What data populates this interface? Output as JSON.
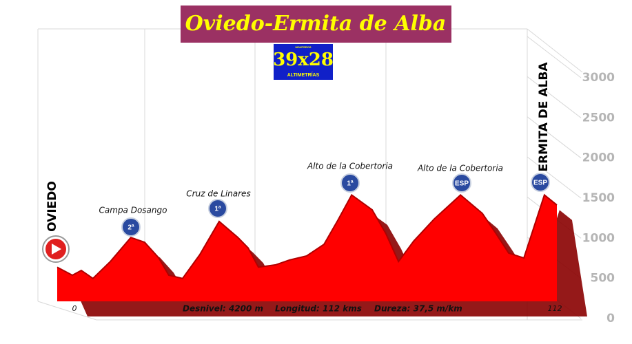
{
  "chart_data": {
    "type": "area",
    "title": "Oviedo-Ermita de Alba",
    "logo": {
      "top": "MONTEROS",
      "main": "39x28",
      "bottom": "ALTIMETRÍAS"
    },
    "x": [
      0,
      3.4,
      5.4,
      8.0,
      11.9,
      16.5,
      19.6,
      22.7,
      25.0,
      28.1,
      32.0,
      36.3,
      40.5,
      42.8,
      45.1,
      49.0,
      52.1,
      55.9,
      59.8,
      62.9,
      66.0,
      70.6,
      73.7,
      76.5,
      79.9,
      84.5,
      90.4,
      95.3,
      98.4,
      101.2,
      104.6,
      109.2,
      112
    ],
    "values": [
      640,
      540,
      600,
      500,
      710,
      1010,
      950,
      760,
      540,
      500,
      800,
      1210,
      1010,
      880,
      640,
      670,
      730,
      780,
      925,
      1225,
      1540,
      1355,
      1055,
      710,
      965,
      1240,
      1540,
      1310,
      1055,
      815,
      755,
      1540,
      1415
    ],
    "color": "#ff0000",
    "xlim": [
      0,
      112
    ],
    "xticks": [
      0,
      112
    ],
    "ylim": [
      0,
      3000
    ],
    "yticks": [
      0,
      500,
      1000,
      1500,
      2000,
      2500,
      3000
    ],
    "start": "OVIEDO",
    "finish": "ERMITA DE ALBA",
    "summits": [
      {
        "name": "Campa Dosango",
        "category": "2ª"
      },
      {
        "name": "Cruz de Linares",
        "category": "1ª"
      },
      {
        "name": "Alto de la Cobertoria",
        "category": "1ª"
      },
      {
        "name": "Alto de la Cobertoria",
        "category": "ESP"
      }
    ],
    "finish_category": "ESP",
    "stats": [
      "Desnivel: 4200 m",
      "Longitud:   112 kms",
      "Dureza: 37,5 m/km"
    ]
  }
}
